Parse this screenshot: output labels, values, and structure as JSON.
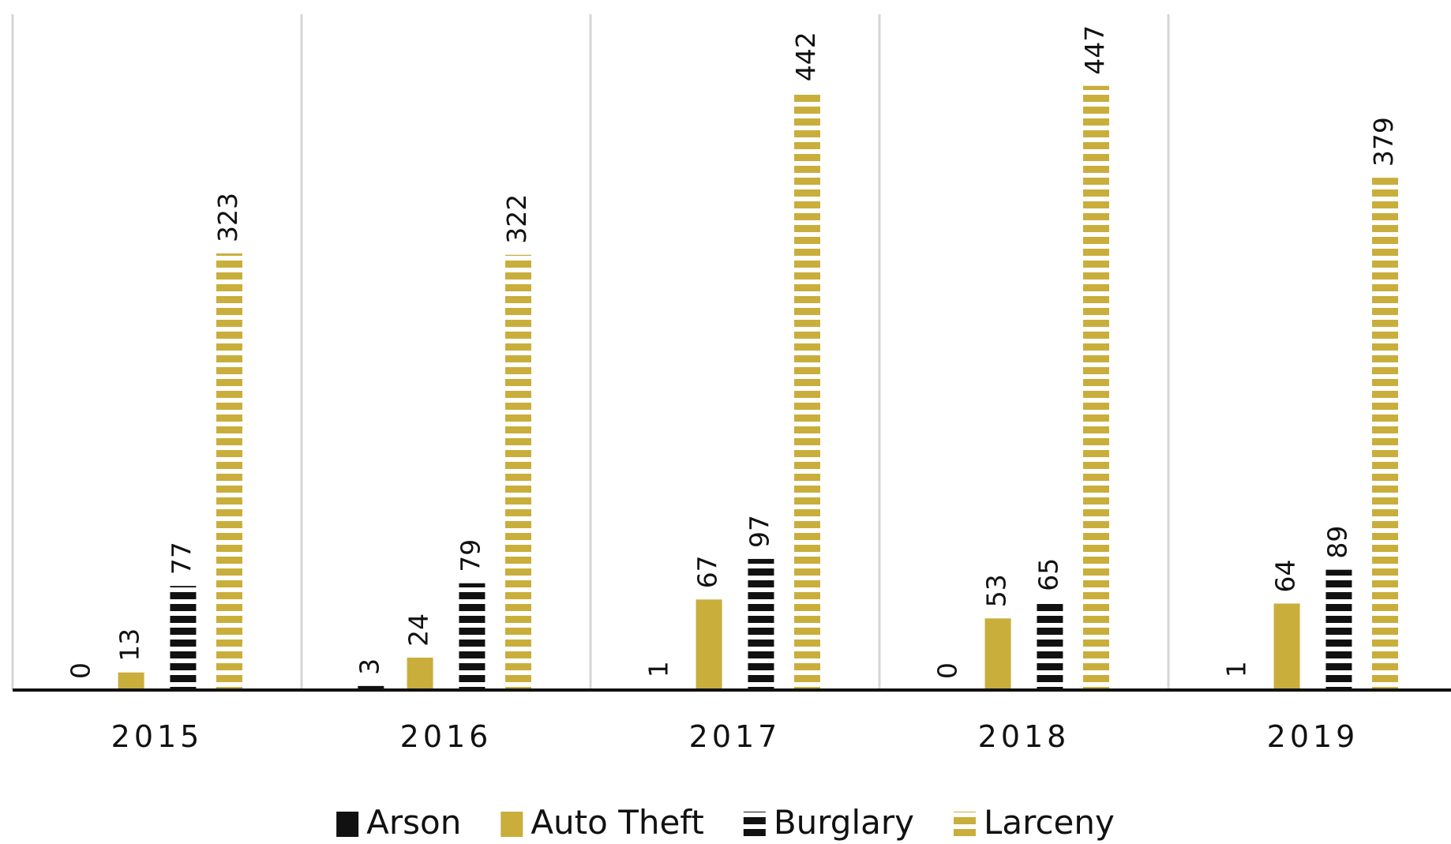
{
  "chart_data": {
    "type": "bar",
    "categories": [
      "2015",
      "2016",
      "2017",
      "2018",
      "2019"
    ],
    "series": [
      {
        "name": "Arson",
        "color": "#111111",
        "pattern": "solid",
        "values": [
          0,
          3,
          1,
          0,
          1
        ]
      },
      {
        "name": "Auto Theft",
        "color": "#c9ae3c",
        "pattern": "solid",
        "values": [
          13,
          24,
          67,
          53,
          64
        ]
      },
      {
        "name": "Burglary",
        "color": "#111111",
        "pattern": "stripes",
        "values": [
          77,
          79,
          97,
          65,
          89
        ]
      },
      {
        "name": "Larceny",
        "color": "#c9ae3c",
        "pattern": "stripes",
        "values": [
          323,
          322,
          442,
          447,
          379
        ]
      }
    ],
    "ylim": [
      0,
      500
    ],
    "legend": "bottom"
  }
}
